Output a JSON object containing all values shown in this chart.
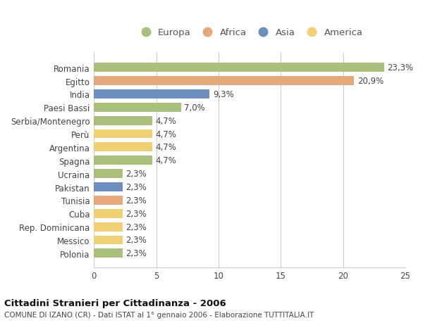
{
  "categories": [
    "Romania",
    "Egitto",
    "India",
    "Paesi Bassi",
    "Serbia/Montenegro",
    "Perù",
    "Argentina",
    "Spagna",
    "Ucraina",
    "Pakistan",
    "Tunisia",
    "Cuba",
    "Rep. Dominicana",
    "Messico",
    "Polonia"
  ],
  "values": [
    23.3,
    20.9,
    9.3,
    7.0,
    4.7,
    4.7,
    4.7,
    4.7,
    2.3,
    2.3,
    2.3,
    2.3,
    2.3,
    2.3,
    2.3
  ],
  "continents": [
    "Europa",
    "Africa",
    "Asia",
    "Europa",
    "Europa",
    "America",
    "America",
    "Europa",
    "Europa",
    "Asia",
    "Africa",
    "America",
    "America",
    "America",
    "Europa"
  ],
  "colors": {
    "Europa": "#a8c07a",
    "Africa": "#e8a97a",
    "Asia": "#6a8fc0",
    "America": "#f0d070"
  },
  "legend_order": [
    "Europa",
    "Africa",
    "Asia",
    "America"
  ],
  "legend_colors": {
    "Europa": "#a8c07a",
    "Africa": "#e8a97a",
    "Asia": "#6a8fc0",
    "America": "#f0d070"
  },
  "xlim": [
    0,
    25
  ],
  "xticks": [
    0,
    5,
    10,
    15,
    20,
    25
  ],
  "title": "Cittadini Stranieri per Cittadinanza - 2006",
  "subtitle": "COMUNE DI IZANO (CR) - Dati ISTAT al 1° gennaio 2006 - Elaborazione TUTTITALIA.IT",
  "background_color": "#ffffff",
  "grid_color": "#cccccc",
  "bar_height": 0.68,
  "label_fontsize": 8.5,
  "tick_fontsize": 8.5,
  "legend_fontsize": 9.5
}
